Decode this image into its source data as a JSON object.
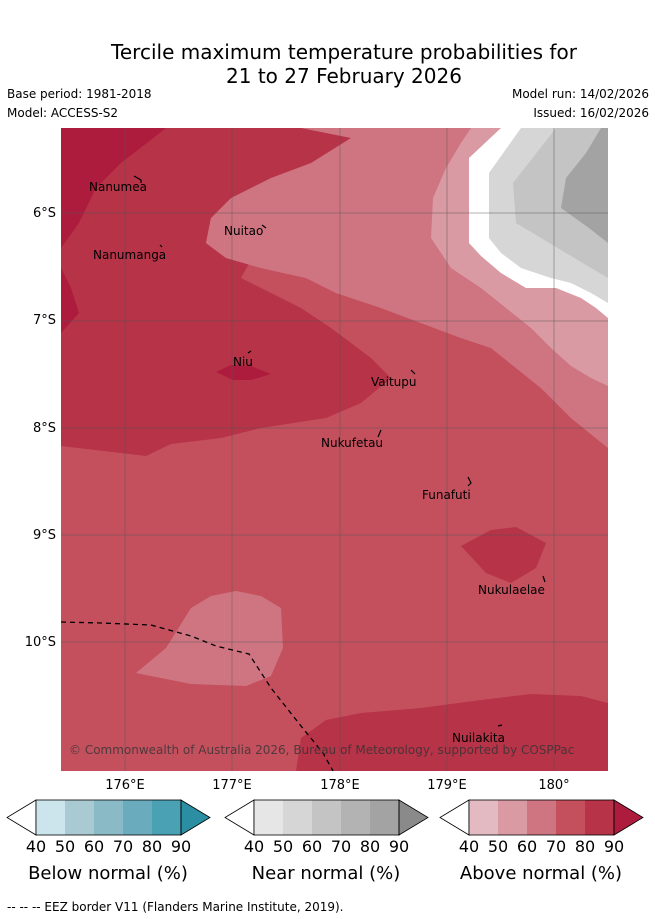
{
  "title": {
    "line1": "Tercile maximum temperature probabilities for",
    "line2": "21 to 27 February 2026"
  },
  "meta": {
    "base_period": "Base period: 1981-2018",
    "model": "Model: ACCESS-S2",
    "model_run": "Model run: 14/02/2026",
    "issued": "Issued: 16/02/2026"
  },
  "axes": {
    "lat_labels": [
      "6°S",
      "7°S",
      "8°S",
      "9°S",
      "10°S"
    ],
    "lon_labels": [
      "176°E",
      "177°E",
      "178°E",
      "179°E",
      "180°"
    ]
  },
  "places": [
    {
      "name": "Nanumea"
    },
    {
      "name": "Nuitao"
    },
    {
      "name": "Nanumanga"
    },
    {
      "name": "Niu"
    },
    {
      "name": "Vaitupu"
    },
    {
      "name": "Nukufetau"
    },
    {
      "name": "Funafuti"
    },
    {
      "name": "Nukulaelae"
    },
    {
      "name": "Nuilakita"
    }
  ],
  "copyright": "© Commonwealth of Australia 2026, Bureau of Meteorology, supported by COSPPac",
  "legends": [
    {
      "title": "Below normal (%)",
      "ticks": [
        "40",
        "50",
        "60",
        "70",
        "80",
        "90"
      ],
      "colors": [
        "#ffffff",
        "#cce5ec",
        "#a9cad3",
        "#8bbac7",
        "#6aabbd",
        "#4aa1b3",
        "#2b8ea3"
      ]
    },
    {
      "title": "Near normal (%)",
      "ticks": [
        "40",
        "50",
        "60",
        "70",
        "80",
        "90"
      ],
      "colors": [
        "#ffffff",
        "#e6e6e6",
        "#d6d6d6",
        "#c4c4c4",
        "#b3b3b3",
        "#a3a3a3",
        "#8a8a8a"
      ]
    },
    {
      "title": "Above normal (%)",
      "ticks": [
        "40",
        "50",
        "60",
        "70",
        "80",
        "90"
      ],
      "colors": [
        "#ffffff",
        "#e4bac2",
        "#d99aa3",
        "#cf7581",
        "#c4505e",
        "#b63348",
        "#ad1c3c"
      ]
    }
  ],
  "footnote": "-- -- -- EEZ border V11 (Flanders Marine Institute, 2019)."
}
